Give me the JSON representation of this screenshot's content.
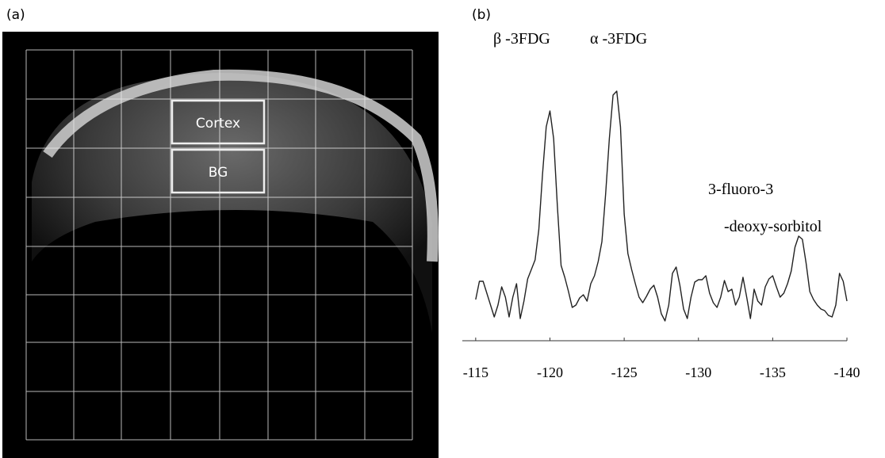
{
  "image_panel": {
    "label": "(a)",
    "regions": [
      "Cortex",
      "BG"
    ]
  },
  "chart_data": {
    "type": "line",
    "panel_label": "(b)",
    "annotations": [
      "β -3FDG",
      "α -3FDG",
      "3-fluoro-3",
      "-deoxy-sorbitol"
    ],
    "color": "#222222",
    "xlim": [
      -114.1,
      -140
    ],
    "xticks": [
      -115,
      -120,
      -125,
      -130,
      -135,
      -140
    ],
    "ylim": [
      0,
      320
    ],
    "x": [
      -115,
      -115.25,
      -115.5,
      -115.75,
      -116,
      -116.25,
      -116.5,
      -116.75,
      -117,
      -117.25,
      -117.5,
      -117.75,
      -118,
      -118.25,
      -118.5,
      -118.75,
      -119,
      -119.25,
      -119.5,
      -119.75,
      -120,
      -120.25,
      -120.5,
      -120.75,
      -121,
      -121.25,
      -121.5,
      -121.75,
      -122,
      -122.25,
      -122.5,
      -122.75,
      -123,
      -123.25,
      -123.5,
      -123.75,
      -124,
      -124.25,
      -124.5,
      -124.75,
      -125,
      -125.25,
      -125.5,
      -125.75,
      -126,
      -126.25,
      -126.5,
      -126.75,
      -127,
      -127.25,
      -127.5,
      -127.75,
      -128,
      -128.25,
      -128.5,
      -128.75,
      -129,
      -129.25,
      -129.5,
      -129.75,
      -130,
      -130.25,
      -130.5,
      -130.75,
      -131,
      -131.25,
      -131.5,
      -131.75,
      -132,
      -132.25,
      -132.5,
      -132.75,
      -133,
      -133.25,
      -133.5,
      -133.75,
      -134,
      -134.25,
      -134.5,
      -134.75,
      -135,
      -135.25,
      -135.5,
      -135.75,
      -136,
      -136.25,
      -136.5,
      -136.75,
      -137,
      -137.25,
      -137.5,
      -137.75,
      -138,
      -138.25,
      -138.5,
      -138.75,
      -139,
      -139.25,
      -139.5,
      -139.75,
      -140
    ],
    "values": [
      42,
      65,
      65,
      50,
      35,
      20,
      35,
      58,
      45,
      20,
      45,
      62,
      18,
      40,
      68,
      80,
      92,
      130,
      200,
      260,
      280,
      245,
      160,
      85,
      70,
      52,
      32,
      35,
      44,
      48,
      40,
      62,
      72,
      90,
      115,
      175,
      245,
      300,
      305,
      260,
      150,
      100,
      80,
      62,
      45,
      38,
      46,
      55,
      60,
      45,
      24,
      15,
      35,
      75,
      83,
      60,
      30,
      18,
      45,
      64,
      67,
      67,
      72,
      50,
      38,
      32,
      45,
      66,
      52,
      55,
      35,
      45,
      70,
      45,
      18,
      55,
      40,
      35,
      58,
      68,
      72,
      58,
      45,
      50,
      62,
      78,
      108,
      122,
      118,
      88,
      52,
      42,
      35,
      30,
      28,
      22,
      20,
      35,
      75,
      65,
      40
    ]
  }
}
